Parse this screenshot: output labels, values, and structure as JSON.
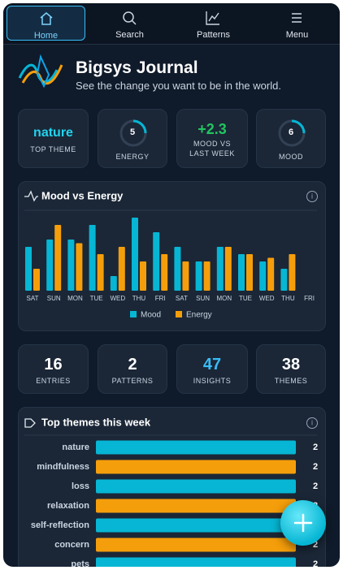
{
  "nav": {
    "items": [
      "Home",
      "Search",
      "Patterns",
      "Menu"
    ]
  },
  "header": {
    "title": "Bigsys Journal",
    "subtitle": "See the change you want to be in the world."
  },
  "stats": [
    {
      "value": "nature",
      "label": "TOP THEME"
    },
    {
      "value": "5",
      "label": "ENERGY"
    },
    {
      "value": "+2.3",
      "label": "MOOD VS LAST WEEK"
    },
    {
      "value": "6",
      "label": "MOOD"
    }
  ],
  "counts": [
    {
      "value": "16",
      "label": "ENTRIES"
    },
    {
      "value": "2",
      "label": "PATTERNS"
    },
    {
      "value": "47",
      "label": "INSIGHTS"
    },
    {
      "value": "38",
      "label": "THEMES"
    }
  ],
  "chart_data": [
    {
      "type": "bar",
      "title": "Mood vs Energy",
      "categories": [
        "SAT",
        "SUN",
        "MON",
        "TUE",
        "WED",
        "THU",
        "FRI",
        "SAT",
        "SUN",
        "MON",
        "TUE",
        "WED",
        "THU",
        "FRI"
      ],
      "series": [
        {
          "name": "Mood",
          "color": "#06b6d4",
          "values": [
            6,
            7,
            7,
            9,
            2,
            10,
            8,
            6,
            4,
            6,
            5,
            4,
            3,
            null
          ]
        },
        {
          "name": "Energy",
          "color": "#f59e0b",
          "values": [
            3,
            9,
            6.5,
            5,
            6,
            4,
            5,
            4,
            4,
            6,
            5,
            4.5,
            5,
            null
          ]
        }
      ],
      "ylim": [
        0,
        10
      ],
      "legend": "bottom"
    },
    {
      "type": "hbar",
      "title": "Top themes this week",
      "categories": [
        "nature",
        "mindfulness",
        "loss",
        "relaxation",
        "self-reflection",
        "concern",
        "pets"
      ],
      "values": [
        2,
        2,
        2,
        2,
        2,
        2,
        2
      ],
      "colors": [
        "#06b6d4",
        "#f59e0b",
        "#06b6d4",
        "#f59e0b",
        "#06b6d4",
        "#f59e0b",
        "#06b6d4"
      ],
      "xlim": [
        0,
        2
      ]
    }
  ]
}
